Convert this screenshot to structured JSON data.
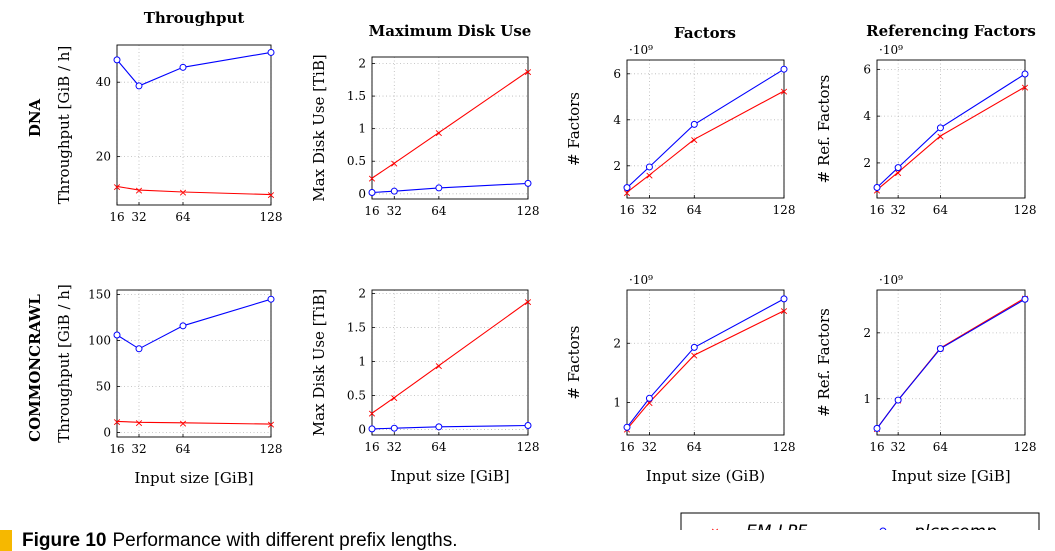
{
  "figure": {
    "number_label": "Figure 10",
    "caption": "Performance with different prefix lengths."
  },
  "row_labels": [
    "DNA",
    "COMMONCRAWL"
  ],
  "legend": {
    "entries": [
      "EM-LPF",
      "plcpcomp"
    ]
  },
  "colors": {
    "em_lpf": "#ff0000",
    "plcpcomp": "#0000ff"
  },
  "chart_data": [
    {
      "type": "line",
      "row": "DNA",
      "title": "Throughput",
      "xlabel": "",
      "ylabel": "Throughput [GiB / h]",
      "x": [
        16,
        32,
        64,
        128
      ],
      "xticks": [
        "16",
        "32",
        "64",
        "128"
      ],
      "xlim": [
        16,
        128
      ],
      "yticks": [
        20,
        40
      ],
      "ytick_labels": [
        "20",
        "40"
      ],
      "ylim": [
        7,
        50
      ],
      "exponent": "",
      "series": [
        {
          "name": "EM-LPF",
          "values": [
            12,
            11,
            10.5,
            9.8
          ]
        },
        {
          "name": "plcpcomp",
          "values": [
            46,
            39,
            44,
            48
          ]
        }
      ]
    },
    {
      "type": "line",
      "row": "DNA",
      "title": "Maximum Disk Use",
      "xlabel": "",
      "ylabel": "Max Disk Use [TiB]",
      "x": [
        16,
        32,
        64,
        128
      ],
      "xticks": [
        "16",
        "32",
        "64",
        "128"
      ],
      "xlim": [
        16,
        128
      ],
      "yticks": [
        0,
        0.5,
        1,
        1.5,
        2
      ],
      "ytick_labels": [
        "0",
        "0.5",
        "1",
        "1.5",
        "2"
      ],
      "ylim": [
        -0.08,
        2.1
      ],
      "exponent": "",
      "series": [
        {
          "name": "EM-LPF",
          "values": [
            0.24,
            0.47,
            0.94,
            1.88
          ]
        },
        {
          "name": "plcpcomp",
          "values": [
            0.02,
            0.04,
            0.09,
            0.16
          ]
        }
      ]
    },
    {
      "type": "line",
      "row": "DNA",
      "title": "Factors",
      "xlabel": "",
      "ylabel": "# Factors",
      "x": [
        16,
        32,
        64,
        128
      ],
      "xticks": [
        "16",
        "32",
        "64",
        "128"
      ],
      "xlim": [
        16,
        128
      ],
      "yticks": [
        2,
        4,
        6
      ],
      "ytick_labels": [
        "2",
        "4",
        "6"
      ],
      "ylim": [
        0.6,
        6.6
      ],
      "exponent": "·10⁹",
      "series": [
        {
          "name": "EM-LPF",
          "values": [
            0.85,
            1.6,
            3.15,
            5.25
          ]
        },
        {
          "name": "plcpcomp",
          "values": [
            1.05,
            1.95,
            3.8,
            6.2
          ]
        }
      ]
    },
    {
      "type": "line",
      "row": "DNA",
      "title": "Referencing Factors",
      "xlabel": "",
      "ylabel": "# Ref. Factors",
      "x": [
        16,
        32,
        64,
        128
      ],
      "xticks": [
        "16",
        "32",
        "64",
        "128"
      ],
      "xlim": [
        16,
        128
      ],
      "yticks": [
        2,
        4,
        6
      ],
      "ytick_labels": [
        "2",
        "4",
        "6"
      ],
      "ylim": [
        0.5,
        6.4
      ],
      "exponent": "·10⁹",
      "series": [
        {
          "name": "EM-LPF",
          "values": [
            0.85,
            1.6,
            3.15,
            5.25
          ]
        },
        {
          "name": "plcpcomp",
          "values": [
            0.95,
            1.8,
            3.5,
            5.8
          ]
        }
      ]
    },
    {
      "type": "line",
      "row": "COMMONCRAWL",
      "title": "",
      "xlabel": "Input size [GiB]",
      "ylabel": "Throughput [GiB / h]",
      "x": [
        16,
        32,
        64,
        128
      ],
      "xticks": [
        "16",
        "32",
        "64",
        "128"
      ],
      "xlim": [
        16,
        128
      ],
      "yticks": [
        0,
        50,
        100,
        150
      ],
      "ytick_labels": [
        "0",
        "50",
        "100",
        "150"
      ],
      "ylim": [
        -5,
        155
      ],
      "exponent": "",
      "series": [
        {
          "name": "EM-LPF",
          "values": [
            12,
            11,
            10.5,
            9
          ]
        },
        {
          "name": "plcpcomp",
          "values": [
            106,
            91,
            116,
            145
          ]
        }
      ]
    },
    {
      "type": "line",
      "row": "COMMONCRAWL",
      "title": "",
      "xlabel": "Input size [GiB]",
      "ylabel": "Max Disk Use [TiB]",
      "x": [
        16,
        32,
        64,
        128
      ],
      "xticks": [
        "16",
        "32",
        "64",
        "128"
      ],
      "xlim": [
        16,
        128
      ],
      "yticks": [
        0,
        0.5,
        1,
        1.5,
        2
      ],
      "ytick_labels": [
        "0",
        "0.5",
        "1",
        "1.5",
        "2"
      ],
      "ylim": [
        -0.08,
        2.05
      ],
      "exponent": "",
      "series": [
        {
          "name": "EM-LPF",
          "values": [
            0.24,
            0.47,
            0.94,
            1.88
          ]
        },
        {
          "name": "plcpcomp",
          "values": [
            0.01,
            0.02,
            0.04,
            0.06
          ]
        }
      ]
    },
    {
      "type": "line",
      "row": "COMMONCRAWL",
      "title": "",
      "xlabel": "Input size (GiB)",
      "ylabel": "# Factors",
      "x": [
        16,
        32,
        64,
        128
      ],
      "xticks": [
        "16",
        "32",
        "64",
        "128"
      ],
      "xlim": [
        16,
        128
      ],
      "yticks": [
        1,
        2
      ],
      "ytick_labels": [
        "1",
        "2"
      ],
      "ylim": [
        0.45,
        2.9
      ],
      "exponent": "·10⁹",
      "series": [
        {
          "name": "EM-LPF",
          "values": [
            0.55,
            1.0,
            1.8,
            2.55
          ]
        },
        {
          "name": "plcpcomp",
          "values": [
            0.58,
            1.07,
            1.93,
            2.75
          ]
        }
      ]
    },
    {
      "type": "line",
      "row": "COMMONCRAWL",
      "title": "",
      "xlabel": "Input size [GiB]",
      "ylabel": "# Ref. Factors",
      "x": [
        16,
        32,
        64,
        128
      ],
      "xticks": [
        "16",
        "32",
        "64",
        "128"
      ],
      "xlim": [
        16,
        128
      ],
      "yticks": [
        1,
        2
      ],
      "ytick_labels": [
        "1",
        "2"
      ],
      "ylim": [
        0.45,
        2.65
      ],
      "exponent": "·10⁹",
      "series": [
        {
          "name": "EM-LPF",
          "values": [
            0.55,
            0.98,
            1.77,
            2.53
          ]
        },
        {
          "name": "plcpcomp",
          "values": [
            0.55,
            0.98,
            1.76,
            2.51
          ]
        }
      ]
    }
  ]
}
